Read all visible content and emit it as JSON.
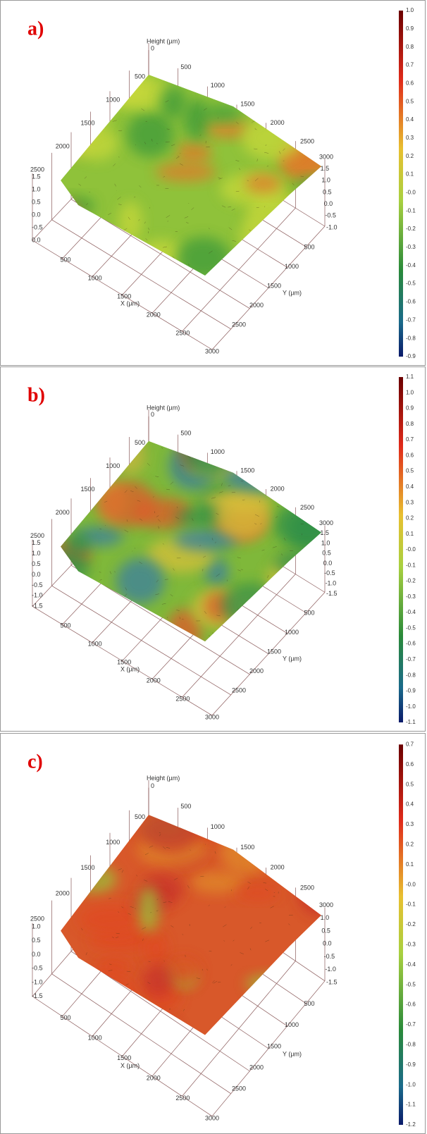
{
  "panels": [
    {
      "label": "a)",
      "height_label": "Height (µm)",
      "x_label": "X (µm)",
      "y_label": "Y (µm)",
      "back_ticks": [
        "0",
        "500",
        "1000",
        "1500",
        "2000",
        "2500"
      ],
      "left_ticks": [
        "500",
        "1000",
        "1500",
        "2000",
        "2500"
      ],
      "left_z_ticks": [
        "1.5",
        "1.0",
        "0.5",
        "0.0",
        "-0.5",
        "0.0"
      ],
      "right_z_ticks": [
        "3000",
        "1.5",
        "1.0",
        "0.5",
        "0.0",
        "-0.5",
        "-1.0"
      ],
      "x_ticks": [
        "500",
        "1000",
        "1500",
        "2000",
        "2500",
        "3000"
      ],
      "y_ticks": [
        "2500",
        "2000",
        "1500",
        "1000",
        "500"
      ],
      "colorbar_ticks": [
        "1.0",
        "0.9",
        "0.8",
        "0.7",
        "0.6",
        "0.5",
        "0.4",
        "0.3",
        "0.2",
        "0.1",
        "-0.0",
        "-0.1",
        "-0.2",
        "-0.3",
        "-0.4",
        "-0.5",
        "-0.6",
        "-0.7",
        "-0.8",
        "-0.9"
      ]
    },
    {
      "label": "b)",
      "height_label": "Height (µm)",
      "x_label": "X (µm)",
      "y_label": "Y (µm)",
      "back_ticks": [
        "0",
        "500",
        "1000",
        "1500",
        "2000",
        "2500"
      ],
      "left_ticks": [
        "500",
        "1000",
        "1500",
        "2000",
        "2500"
      ],
      "left_z_ticks": [
        "1.5",
        "1.0",
        "0.5",
        "0.0",
        "-0.5",
        "-1.0",
        "-1.5"
      ],
      "right_z_ticks": [
        "3000",
        "1.5",
        "1.0",
        "0.5",
        "0.0",
        "-0.5",
        "-1.0",
        "-1.5"
      ],
      "x_ticks": [
        "500",
        "1000",
        "1500",
        "2000",
        "2500",
        "3000"
      ],
      "y_ticks": [
        "2500",
        "2000",
        "1500",
        "1000",
        "500"
      ],
      "colorbar_ticks": [
        "1.1",
        "1.0",
        "0.9",
        "0.8",
        "0.7",
        "0.6",
        "0.5",
        "0.4",
        "0.3",
        "0.2",
        "0.1",
        "-0.0",
        "-0.1",
        "-0.2",
        "-0.3",
        "-0.4",
        "-0.5",
        "-0.6",
        "-0.7",
        "-0.8",
        "-0.9",
        "-1.0",
        "-1.1"
      ]
    },
    {
      "label": "c)",
      "height_label": "Height (µm)",
      "x_label": "X (µm)",
      "y_label": "Y (µm)",
      "back_ticks": [
        "0",
        "500",
        "1000",
        "1500",
        "2000",
        "2500"
      ],
      "left_ticks": [
        "500",
        "1000",
        "1500",
        "2000",
        "2500"
      ],
      "left_z_ticks": [
        "1.0",
        "0.5",
        "0.0",
        "-0.5",
        "-1.0",
        "-1.5"
      ],
      "right_z_ticks": [
        "3000",
        "1.0",
        "0.5",
        "0.0",
        "-0.5",
        "-1.0",
        "-1.5"
      ],
      "x_ticks": [
        "500",
        "1000",
        "1500",
        "2000",
        "2500",
        "3000"
      ],
      "y_ticks": [
        "2500",
        "2000",
        "1500",
        "1000",
        "500"
      ],
      "colorbar_ticks": [
        "0.7",
        "0.6",
        "0.5",
        "0.4",
        "0.3",
        "0.2",
        "0.1",
        "-0.0",
        "-0.1",
        "-0.2",
        "-0.3",
        "-0.4",
        "-0.5",
        "-0.6",
        "-0.7",
        "-0.8",
        "-0.9",
        "-1.0",
        "-1.1",
        "-1.2"
      ]
    }
  ]
}
